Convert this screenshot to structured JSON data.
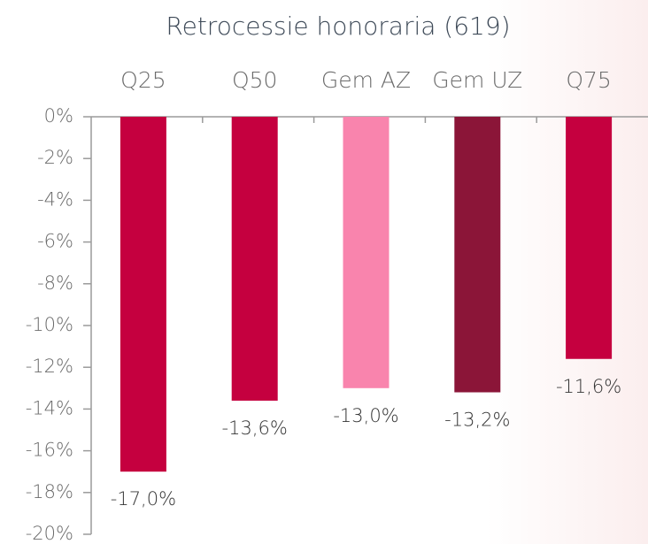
{
  "chart_data": {
    "type": "bar",
    "title": "Retrocessie honoraria (619)",
    "categories": [
      "Q25",
      "Q50",
      "Gem AZ",
      "Gem UZ",
      "Q75"
    ],
    "values": [
      -17.0,
      -13.6,
      -13.0,
      -13.2,
      -11.6
    ],
    "value_labels": [
      "-17,0%",
      "-13,6%",
      "-13,0%",
      "-13,2%",
      "-11,6%"
    ],
    "colors": [
      "#c5003f",
      "#c5003f",
      "#f984ad",
      "#8b1538",
      "#c5003f"
    ],
    "ylim": [
      -20,
      0
    ],
    "yticks": [
      {
        "value": 0,
        "label": "0%"
      },
      {
        "value": -2,
        "label": "-2%"
      },
      {
        "value": -4,
        "label": "-4%"
      },
      {
        "value": -6,
        "label": "-6%"
      },
      {
        "value": -8,
        "label": "-8%"
      },
      {
        "value": -10,
        "label": "-10%"
      },
      {
        "value": -12,
        "label": "-12%"
      },
      {
        "value": -14,
        "label": "-14%"
      },
      {
        "value": -16,
        "label": "-16%"
      },
      {
        "value": -18,
        "label": "-18%"
      },
      {
        "value": -20,
        "label": "-20%"
      }
    ]
  }
}
